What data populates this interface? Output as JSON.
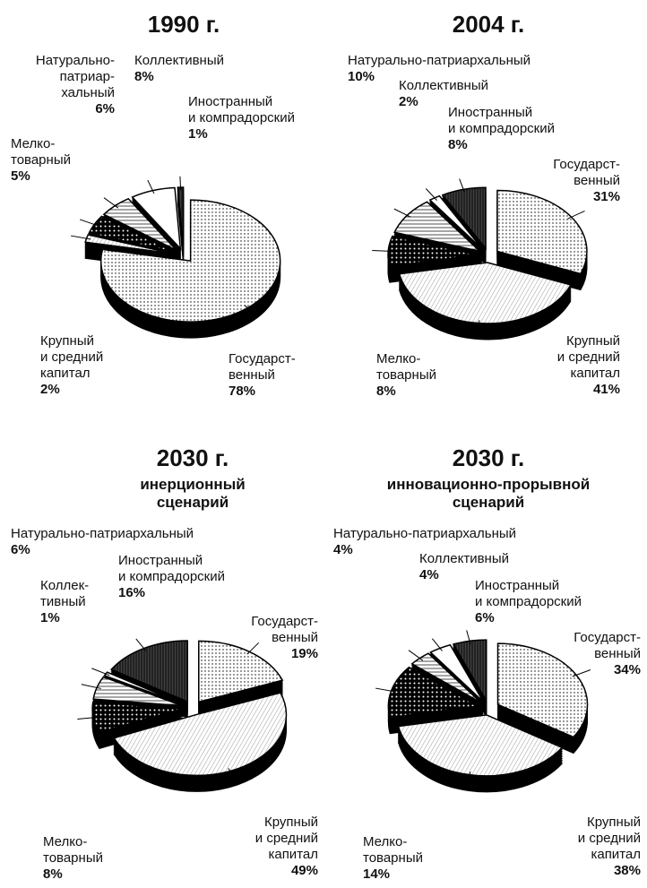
{
  "chart_data": [
    {
      "type": "pie",
      "title": "1990 г.",
      "categories": [
        [
          "Государст-",
          "венный"
        ],
        [
          "Крупный",
          "и средний",
          "капитал"
        ],
        [
          "Мелко-",
          "товарный"
        ],
        [
          "Натурально-",
          "патриар-",
          "хальный"
        ],
        [
          "Коллективный"
        ],
        [
          "Иностранный",
          "и компрадорский"
        ]
      ],
      "values": [
        78,
        2,
        5,
        6,
        8,
        1
      ],
      "value_labels": [
        "78%",
        "2%",
        "5%",
        "6%",
        "8%",
        "1%"
      ]
    },
    {
      "type": "pie",
      "title": "2004 г.",
      "categories": [
        [
          "Государст-",
          "венный"
        ],
        [
          "Крупный",
          "и средний",
          "капитал"
        ],
        [
          "Мелко-",
          "товарный"
        ],
        [
          "Натурально-патриархальный"
        ],
        [
          "Коллективный"
        ],
        [
          "Иностранный",
          "и компрадорский"
        ]
      ],
      "values": [
        31,
        41,
        8,
        10,
        2,
        8
      ],
      "value_labels": [
        "31%",
        "41%",
        "8%",
        "10%",
        "2%",
        "8%"
      ]
    },
    {
      "type": "pie",
      "title": "2030 г.",
      "subtitle": [
        "инерционный",
        "сценарий"
      ],
      "categories": [
        [
          "Государст-",
          "венный"
        ],
        [
          "Крупный",
          "и средний",
          "капитал"
        ],
        [
          "Мелко-",
          "товарный"
        ],
        [
          "Натурально-патриархальный"
        ],
        [
          "Коллек-",
          "тивный"
        ],
        [
          "Иностранный",
          "и компрадорский"
        ]
      ],
      "values": [
        19,
        49,
        8,
        6,
        1,
        16
      ],
      "value_labels": [
        "19%",
        "49%",
        "8%",
        "6%",
        "1%",
        "16%"
      ]
    },
    {
      "type": "pie",
      "title": "2030 г.",
      "subtitle": [
        "инновационно-прорывной",
        "сценарий"
      ],
      "categories": [
        [
          "Государст-",
          "венный"
        ],
        [
          "Крупный",
          "и средний",
          "капитал"
        ],
        [
          "Мелко-",
          "товарный"
        ],
        [
          "Натурально-патриархальный"
        ],
        [
          "Коллективный"
        ],
        [
          "Иностранный",
          "и компрадорский"
        ]
      ],
      "values": [
        34,
        38,
        14,
        4,
        4,
        6
      ],
      "value_labels": [
        "34%",
        "38%",
        "14%",
        "4%",
        "4%",
        "6%"
      ]
    }
  ]
}
